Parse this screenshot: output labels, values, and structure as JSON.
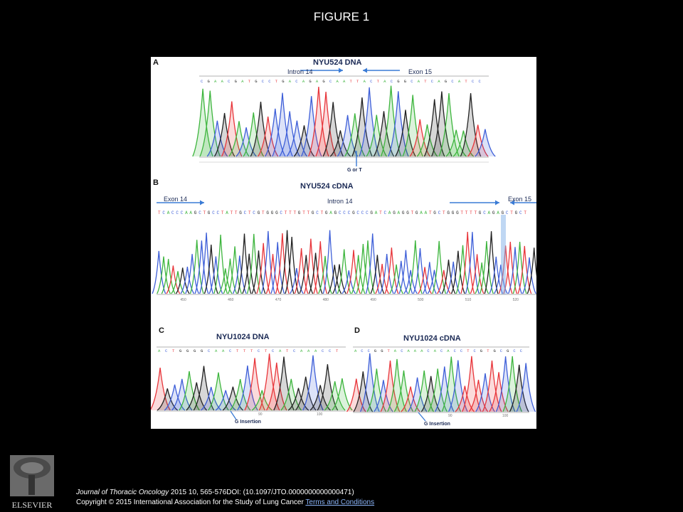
{
  "title": "FIGURE 1",
  "panels": {
    "a": {
      "letter": "A",
      "title": "NYU524  DNA",
      "left_label": "Intron 14",
      "right_label": "Exon 15",
      "annotation": "G or T"
    },
    "b": {
      "letter": "B",
      "title": "NYU524 cDNA",
      "left_label": "Exon 14",
      "center_label": "Intron 14",
      "right_label": "Exon 15",
      "sequence": "TCACCCAAGCTGCCTATTGCTCGTGGGCTTTGTTGCTGAGCCCGCCCGATCAGAGGTGAATGCTGGGTTTTGCAG|AGCTGCT",
      "ticks": [
        "450",
        "460",
        "470",
        "480",
        "490",
        "500",
        "510",
        "520"
      ]
    },
    "c": {
      "letter": "C",
      "title": "NYU1024 DNA",
      "annotation": "G Insertion",
      "ticks": [
        "90",
        "100"
      ]
    },
    "d": {
      "letter": "D",
      "title": "NYU1024  cDNA",
      "annotation": "G Insertion",
      "ticks": [
        "90",
        "100"
      ]
    }
  },
  "publisher": {
    "logo_text": "ELSEVIER"
  },
  "citation": {
    "journal": "Journal of Thoracic Oncology",
    "details": " 2015 10, 565-576DOI: (10.1097/JTO.0000000000000471) ",
    "copyright": "Copyright © 2015 International Association for the Study of Lung Cancer",
    "link": "Terms and Conditions"
  },
  "colors": {
    "A": "#3db53d",
    "C": "#3e5fd8",
    "G": "#222222",
    "T": "#e8353a"
  }
}
